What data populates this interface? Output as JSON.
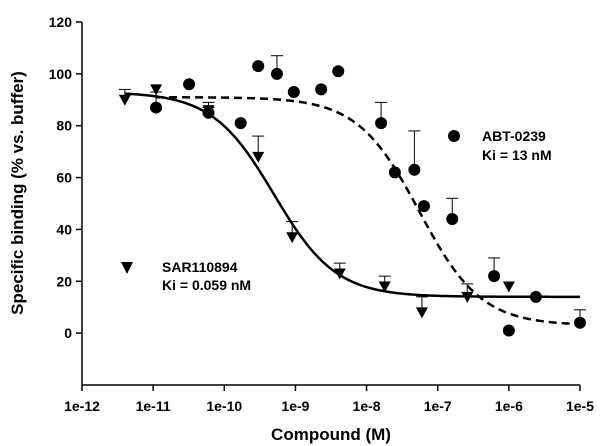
{
  "chart_data": {
    "type": "scatter",
    "xlabel": "Compound (M)",
    "ylabel": "Specific binding (% vs. buffer)",
    "xscale": "log",
    "xlim": [
      1e-12,
      1e-05
    ],
    "ylim": [
      -20,
      120
    ],
    "xticks": [
      {
        "value": 1e-12,
        "label": "1e-12"
      },
      {
        "value": 1e-11,
        "label": "1e-11"
      },
      {
        "value": 1e-10,
        "label": "1e-10"
      },
      {
        "value": 1e-09,
        "label": "1e-9"
      },
      {
        "value": 1e-08,
        "label": "1e-8"
      },
      {
        "value": 1e-07,
        "label": "1e-7"
      },
      {
        "value": 1e-06,
        "label": "1e-6"
      },
      {
        "value": 1e-05,
        "label": "1e-5"
      }
    ],
    "yticks": [
      0,
      20,
      40,
      60,
      80,
      100,
      120
    ],
    "grid": false,
    "series": [
      {
        "name": "ABT-0239",
        "ki_label": "Ki = 13 nM",
        "marker": "circle",
        "line_style": "dashed",
        "color": "#000000",
        "fit": {
          "top": 91,
          "bottom": 3,
          "ic50": 5.5e-08,
          "hill": 1.0
        },
        "points": [
          {
            "x": 1.1e-11,
            "y": 87,
            "err": 6
          },
          {
            "x": 3.2e-11,
            "y": 96,
            "err": 0
          },
          {
            "x": 6e-11,
            "y": 85,
            "err": 2
          },
          {
            "x": 1.7e-10,
            "y": 81,
            "err": 0
          },
          {
            "x": 3e-10,
            "y": 103,
            "err": 0
          },
          {
            "x": 5.5e-10,
            "y": 100,
            "err": 7
          },
          {
            "x": 9.5e-10,
            "y": 93,
            "err": 0
          },
          {
            "x": 2.3e-09,
            "y": 94,
            "err": 0
          },
          {
            "x": 4e-09,
            "y": 101,
            "err": 0
          },
          {
            "x": 1.6e-08,
            "y": 81,
            "err": 8
          },
          {
            "x": 2.5e-08,
            "y": 62,
            "err": 0
          },
          {
            "x": 4.7e-08,
            "y": 63,
            "err": 15
          },
          {
            "x": 6.4e-08,
            "y": 49,
            "err": 0
          },
          {
            "x": 1.6e-07,
            "y": 44,
            "err": 8
          },
          {
            "x": 6.2e-07,
            "y": 22,
            "err": 7
          },
          {
            "x": 1e-06,
            "y": 1,
            "err": 0
          },
          {
            "x": 2.4e-06,
            "y": 14,
            "err": 0
          },
          {
            "x": 1e-05,
            "y": 4,
            "err": 5
          }
        ]
      },
      {
        "name": "SAR110894",
        "ki_label": "Ki = 0.059 nM",
        "marker": "triangle-down",
        "line_style": "solid",
        "color": "#000000",
        "fit": {
          "top": 93,
          "bottom": 14,
          "ic50": 5e-10,
          "hill": 1.0
        },
        "points": [
          {
            "x": 4e-12,
            "y": 90,
            "err": 4
          },
          {
            "x": 1.1e-11,
            "y": 94,
            "err": 0
          },
          {
            "x": 6e-11,
            "y": 86,
            "err": 3
          },
          {
            "x": 3e-10,
            "y": 68,
            "err": 8
          },
          {
            "x": 9e-10,
            "y": 37,
            "err": 6
          },
          {
            "x": 4.2e-09,
            "y": 23,
            "err": 4
          },
          {
            "x": 1.8e-08,
            "y": 18,
            "err": 4
          },
          {
            "x": 6e-08,
            "y": 8,
            "err": 6
          },
          {
            "x": 2.6e-07,
            "y": 14,
            "err": 5
          },
          {
            "x": 1e-06,
            "y": 18,
            "err": 0
          }
        ]
      }
    ]
  }
}
